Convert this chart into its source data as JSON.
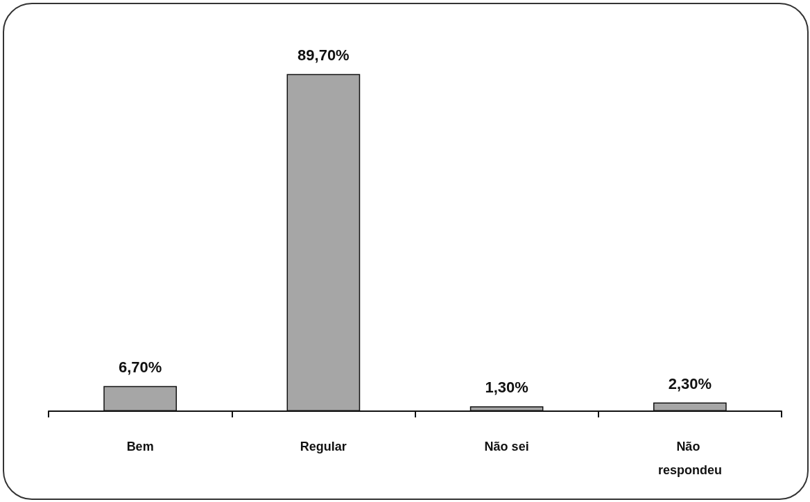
{
  "chart_data": {
    "type": "bar",
    "categories": [
      "Bem",
      "Regular",
      "Não sei",
      "Não respondeu"
    ],
    "values": [
      6.7,
      89.7,
      1.3,
      2.3
    ],
    "value_labels": [
      "6,70%",
      "89,70%",
      "1,30%",
      "2,30%"
    ],
    "color": "#a6a6a6"
  }
}
